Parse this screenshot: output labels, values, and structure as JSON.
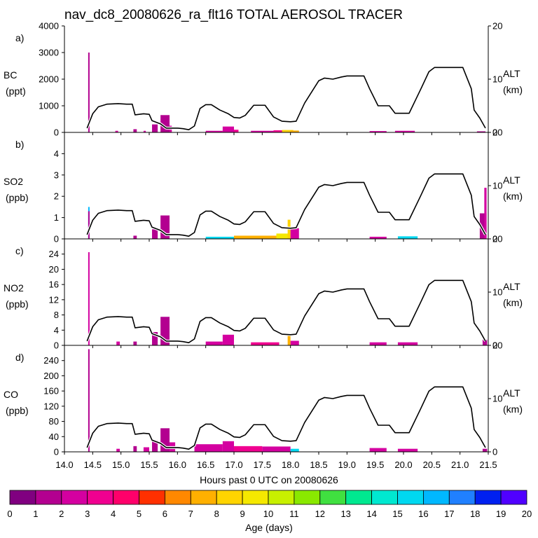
{
  "chart_data": {
    "type": "area",
    "title": "nav_dc8_20080626_ra_flt16 TOTAL AEROSOL TRACER",
    "xlabel": "Hours past 0 UTC on 20080626",
    "xlim": [
      14.0,
      21.5
    ],
    "xticks": [
      "14.0",
      "14.5",
      "15.0",
      "15.5",
      "16.0",
      "16.5",
      "17.0",
      "17.5",
      "18.0",
      "18.5",
      "19.0",
      "19.5",
      "20.0",
      "20.5",
      "21.0",
      "21.5"
    ],
    "altitude_axis": {
      "label": "ALT",
      "units": "(km)",
      "range": [
        0,
        20
      ],
      "ticks": [
        "0",
        "10",
        "20"
      ],
      "profile": [
        [
          14.4,
          0.8
        ],
        [
          14.5,
          3.5
        ],
        [
          14.6,
          4.8
        ],
        [
          14.75,
          5.3
        ],
        [
          14.95,
          5.4
        ],
        [
          15.1,
          5.3
        ],
        [
          15.2,
          5.3
        ],
        [
          15.25,
          3.3
        ],
        [
          15.4,
          3.5
        ],
        [
          15.5,
          3.4
        ],
        [
          15.55,
          2.2
        ],
        [
          15.7,
          1.6
        ],
        [
          15.8,
          0.8
        ],
        [
          16.0,
          0.8
        ],
        [
          16.1,
          0.7
        ],
        [
          16.2,
          0.5
        ],
        [
          16.3,
          1.2
        ],
        [
          16.4,
          4.5
        ],
        [
          16.5,
          5.2
        ],
        [
          16.6,
          5.2
        ],
        [
          16.75,
          4.2
        ],
        [
          16.9,
          3.5
        ],
        [
          17.0,
          2.8
        ],
        [
          17.1,
          2.7
        ],
        [
          17.2,
          3.2
        ],
        [
          17.35,
          5.1
        ],
        [
          17.55,
          5.1
        ],
        [
          17.7,
          2.9
        ],
        [
          17.85,
          2.1
        ],
        [
          18.0,
          2.0
        ],
        [
          18.1,
          2.1
        ],
        [
          18.25,
          5.5
        ],
        [
          18.5,
          9.7
        ],
        [
          18.6,
          10.2
        ],
        [
          18.75,
          10.0
        ],
        [
          18.9,
          10.4
        ],
        [
          19.0,
          10.6
        ],
        [
          19.3,
          10.6
        ],
        [
          19.4,
          8.2
        ],
        [
          19.55,
          5.0
        ],
        [
          19.65,
          5.0
        ],
        [
          19.75,
          5.0
        ],
        [
          19.85,
          3.6
        ],
        [
          20.1,
          3.6
        ],
        [
          20.3,
          8.0
        ],
        [
          20.45,
          11.4
        ],
        [
          20.55,
          12.2
        ],
        [
          21.05,
          12.2
        ],
        [
          21.2,
          8.2
        ],
        [
          21.25,
          4.2
        ],
        [
          21.35,
          2.7
        ],
        [
          21.45,
          0.8
        ]
      ]
    },
    "colorbar": {
      "label": "Age (days)",
      "ticks": [
        "0",
        "1",
        "2",
        "3",
        "4",
        "5",
        "6",
        "7",
        "8",
        "9",
        "10",
        "11",
        "12",
        "13",
        "14",
        "15",
        "16",
        "17",
        "18",
        "19",
        "20"
      ],
      "colors": [
        "#800080",
        "#b30090",
        "#d400a0",
        "#f00090",
        "#ff006a",
        "#ff3000",
        "#ff8800",
        "#ffb000",
        "#ffd400",
        "#f5e800",
        "#c8f000",
        "#8ae800",
        "#40e040",
        "#00e890",
        "#00e8d0",
        "#00d8f0",
        "#00b8ff",
        "#2080ff",
        "#0020f0",
        "#5000ff"
      ]
    },
    "panels": [
      {
        "tag": "a)",
        "species": "BC",
        "units": "(ppt)",
        "ylim": [
          0,
          4000
        ],
        "yticks": [
          "0",
          "1000",
          "2000",
          "3000",
          "4000"
        ],
        "events": [
          {
            "x": 14.42,
            "w": 0.025,
            "v": 3000,
            "c": "#b30090"
          },
          {
            "x": 14.9,
            "w": 0.05,
            "v": 60,
            "c": "#d400a0"
          },
          {
            "x": 15.22,
            "w": 0.06,
            "v": 120,
            "c": "#b30090"
          },
          {
            "x": 15.4,
            "w": 0.04,
            "v": 60,
            "c": "#d400a0"
          },
          {
            "x": 15.55,
            "w": 0.1,
            "v": 300,
            "c": "#b30090"
          },
          {
            "x": 15.7,
            "w": 0.16,
            "v": 650,
            "c": "#b30090"
          },
          {
            "x": 15.86,
            "w": 0.04,
            "v": 250,
            "c": "#d400a0"
          },
          {
            "x": 16.5,
            "w": 0.3,
            "v": 60,
            "c": "#d400a0"
          },
          {
            "x": 16.8,
            "w": 0.2,
            "v": 220,
            "c": "#d400a0"
          },
          {
            "x": 17.0,
            "w": 0.08,
            "v": 100,
            "c": "#f00090"
          },
          {
            "x": 17.3,
            "w": 0.4,
            "v": 60,
            "c": "#d400a0"
          },
          {
            "x": 17.7,
            "w": 0.3,
            "v": 80,
            "c": "#f00090"
          },
          {
            "x": 17.85,
            "w": 0.2,
            "v": 90,
            "c": "#ffd400"
          },
          {
            "x": 18.0,
            "w": 0.15,
            "v": 70,
            "c": "#ffb000"
          },
          {
            "x": 19.4,
            "w": 0.3,
            "v": 50,
            "c": "#d400a0"
          },
          {
            "x": 19.85,
            "w": 0.35,
            "v": 60,
            "c": "#d400a0"
          },
          {
            "x": 21.3,
            "w": 0.15,
            "v": 40,
            "c": "#b30090"
          }
        ]
      },
      {
        "tag": "b)",
        "species": "SO2",
        "units": "(ppb)",
        "ylim": [
          0,
          5
        ],
        "yticks": [
          "0",
          "1",
          "2",
          "3",
          "4"
        ],
        "events": [
          {
            "x": 14.42,
            "w": 0.025,
            "v": 1.5,
            "c": "#00b8ff"
          },
          {
            "x": 14.42,
            "w": 0.025,
            "v": 1.3,
            "c": "#b30090"
          },
          {
            "x": 15.22,
            "w": 0.06,
            "v": 0.15,
            "c": "#b30090"
          },
          {
            "x": 15.55,
            "w": 0.1,
            "v": 0.45,
            "c": "#b30090"
          },
          {
            "x": 15.7,
            "w": 0.16,
            "v": 1.1,
            "c": "#b30090"
          },
          {
            "x": 16.5,
            "w": 0.5,
            "v": 0.1,
            "c": "#00d8f0"
          },
          {
            "x": 17.0,
            "w": 0.8,
            "v": 0.15,
            "c": "#ffb000"
          },
          {
            "x": 17.75,
            "w": 0.25,
            "v": 0.25,
            "c": "#f5e800"
          },
          {
            "x": 17.95,
            "w": 0.05,
            "v": 0.9,
            "c": "#ffd400"
          },
          {
            "x": 18.0,
            "w": 0.15,
            "v": 0.5,
            "c": "#d400a0"
          },
          {
            "x": 19.4,
            "w": 0.3,
            "v": 0.1,
            "c": "#d400a0"
          },
          {
            "x": 19.9,
            "w": 0.35,
            "v": 0.12,
            "c": "#00d8f0"
          },
          {
            "x": 21.35,
            "w": 0.12,
            "v": 1.2,
            "c": "#b30090"
          },
          {
            "x": 21.43,
            "w": 0.04,
            "v": 2.4,
            "c": "#d400a0"
          }
        ]
      },
      {
        "tag": "c)",
        "species": "NO2",
        "units": "(ppb)",
        "ylim": [
          0,
          28
        ],
        "yticks": [
          "0",
          "4",
          "8",
          "12",
          "16",
          "20",
          "24"
        ],
        "events": [
          {
            "x": 14.42,
            "w": 0.025,
            "v": 24.5,
            "c": "#d400a0"
          },
          {
            "x": 14.92,
            "w": 0.06,
            "v": 1.0,
            "c": "#d400a0"
          },
          {
            "x": 15.22,
            "w": 0.06,
            "v": 1.0,
            "c": "#b30090"
          },
          {
            "x": 15.55,
            "w": 0.1,
            "v": 3.5,
            "c": "#b30090"
          },
          {
            "x": 15.7,
            "w": 0.16,
            "v": 7.5,
            "c": "#b30090"
          },
          {
            "x": 16.5,
            "w": 0.3,
            "v": 1.0,
            "c": "#d400a0"
          },
          {
            "x": 16.8,
            "w": 0.2,
            "v": 2.8,
            "c": "#d400a0"
          },
          {
            "x": 17.3,
            "w": 0.5,
            "v": 0.8,
            "c": "#f00090"
          },
          {
            "x": 17.95,
            "w": 0.05,
            "v": 2.5,
            "c": "#ffb000"
          },
          {
            "x": 18.0,
            "w": 0.15,
            "v": 1.2,
            "c": "#d400a0"
          },
          {
            "x": 19.4,
            "w": 0.3,
            "v": 0.8,
            "c": "#d400a0"
          },
          {
            "x": 19.9,
            "w": 0.35,
            "v": 0.8,
            "c": "#d400a0"
          },
          {
            "x": 21.4,
            "w": 0.08,
            "v": 1.5,
            "c": "#b30090"
          }
        ]
      },
      {
        "tag": "d)",
        "species": "CO",
        "units": "(ppb)",
        "ylim": [
          0,
          280
        ],
        "yticks": [
          "0",
          "40",
          "80",
          "120",
          "160",
          "200",
          "240"
        ],
        "events": [
          {
            "x": 14.42,
            "w": 0.025,
            "v": 270,
            "c": "#b30090"
          },
          {
            "x": 14.92,
            "w": 0.06,
            "v": 8,
            "c": "#d400a0"
          },
          {
            "x": 15.22,
            "w": 0.06,
            "v": 15,
            "c": "#b30090"
          },
          {
            "x": 15.4,
            "w": 0.1,
            "v": 12,
            "c": "#d400a0"
          },
          {
            "x": 15.55,
            "w": 0.1,
            "v": 30,
            "c": "#b30090"
          },
          {
            "x": 15.7,
            "w": 0.16,
            "v": 62,
            "c": "#b30090"
          },
          {
            "x": 15.86,
            "w": 0.1,
            "v": 25,
            "c": "#d400a0"
          },
          {
            "x": 16.3,
            "w": 0.5,
            "v": 20,
            "c": "#d400a0"
          },
          {
            "x": 16.8,
            "w": 0.2,
            "v": 28,
            "c": "#d400a0"
          },
          {
            "x": 17.0,
            "w": 0.5,
            "v": 15,
            "c": "#f00090"
          },
          {
            "x": 17.5,
            "w": 0.5,
            "v": 14,
            "c": "#d400a0"
          },
          {
            "x": 18.0,
            "w": 0.15,
            "v": 8,
            "c": "#00d8f0"
          },
          {
            "x": 19.4,
            "w": 0.3,
            "v": 10,
            "c": "#d400a0"
          },
          {
            "x": 19.9,
            "w": 0.35,
            "v": 8,
            "c": "#d400a0"
          },
          {
            "x": 21.4,
            "w": 0.08,
            "v": 8,
            "c": "#b30090"
          }
        ]
      }
    ]
  }
}
